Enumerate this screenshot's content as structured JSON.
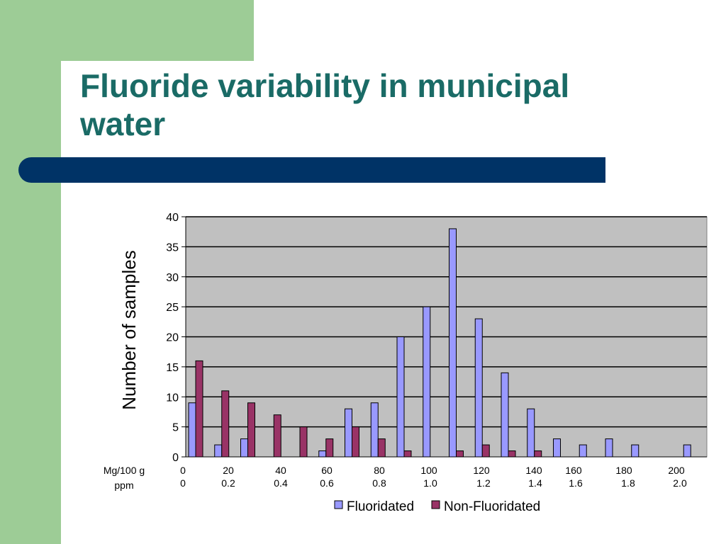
{
  "slide": {
    "title": "Fluoride variability in municipal water"
  },
  "colors": {
    "background_strip": "#9dcc96",
    "title": "#1a6b66",
    "title_bar": "#003366",
    "plot_bg": "#c0c0c0",
    "fluoridated": "#9999ff",
    "non_fluoridated": "#993366"
  },
  "chart_data": {
    "type": "bar",
    "title": "",
    "ylabel": "Number of samples",
    "ylim": [
      0,
      40
    ],
    "yticks": [
      0,
      5,
      10,
      15,
      20,
      25,
      30,
      35,
      40
    ],
    "grid": true,
    "legend_position": "bottom",
    "x_row_labels": [
      "Mg/100 g",
      "ppm"
    ],
    "x_ticks_mg": [
      "0",
      "20",
      "40",
      "60",
      "80",
      "100",
      "120",
      "140",
      "160",
      "180",
      "200"
    ],
    "x_ticks_ppm": [
      "0",
      "0.2",
      "0.4",
      "0.6",
      "0.8",
      "1.0",
      "1.2",
      "1.4",
      "1.6",
      "1.8",
      "2.0"
    ],
    "series": [
      {
        "name": "Fluoridated",
        "values": [
          9,
          2,
          3,
          0,
          0,
          1,
          8,
          9,
          20,
          25,
          38,
          23,
          14,
          8,
          3,
          2,
          3,
          2,
          0,
          2
        ]
      },
      {
        "name": "Non-Fluoridated",
        "values": [
          16,
          11,
          9,
          7,
          5,
          3,
          5,
          3,
          1,
          0,
          1,
          2,
          1,
          1,
          0,
          0,
          0,
          0,
          0,
          0
        ]
      }
    ]
  }
}
